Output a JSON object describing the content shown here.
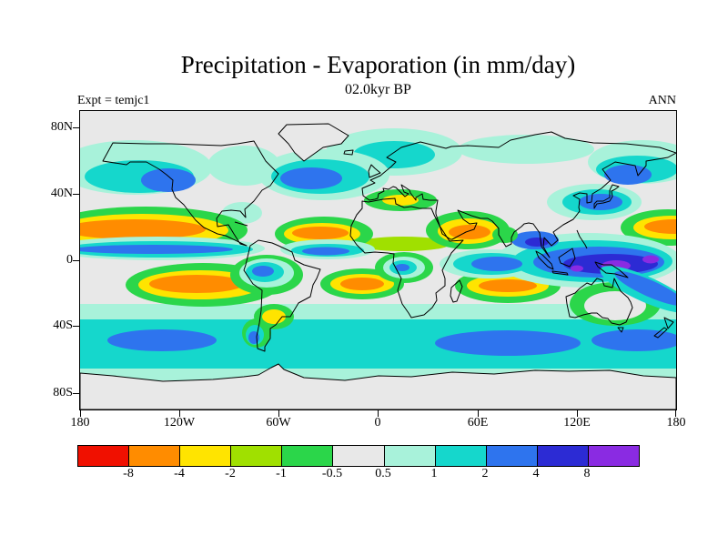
{
  "page": {
    "title": "Precipitation - Evaporation (in mm/day)",
    "subtitle": "02.0kyr BP",
    "experiment_label": "Expt = temjc1",
    "season_label": "ANN"
  },
  "axes": {
    "lat_ticks": [
      "80N",
      "40N",
      "0",
      "40S",
      "80S"
    ],
    "lon_ticks": [
      "180",
      "120W",
      "60W",
      "0",
      "60E",
      "120E",
      "180"
    ]
  },
  "colorbar": {
    "boundary_labels": [
      "-8",
      "-4",
      "-2",
      "-1",
      "-0.5",
      "0.5",
      "1",
      "2",
      "4",
      "8"
    ],
    "colors": [
      "#f01000",
      "#ff8c00",
      "#ffe400",
      "#a0e000",
      "#2bd64a",
      "#e8e8e8",
      "#a8f2da",
      "#15d7cc",
      "#2e74ee",
      "#2c2bd4",
      "#8a2be2"
    ]
  },
  "chart_data": {
    "type": "heatmap",
    "title": "Precipitation - Evaporation (in mm/day)",
    "subtitle": "02.0kyr BP",
    "experiment": "temjc1",
    "season": "ANN",
    "units": "mm/day",
    "projection": "global latitude-longitude world map, 180W-180E, 90S-90N",
    "lat_ticks": [
      "80N",
      "40N",
      "0",
      "40S",
      "80S"
    ],
    "lon_ticks": [
      "180",
      "120W",
      "60W",
      "0",
      "60E",
      "120E",
      "180"
    ],
    "contour_levels": [
      -8,
      -4,
      -2,
      -1,
      -0.5,
      0.5,
      1,
      2,
      4,
      8
    ],
    "palette": [
      "#f01000",
      "#ff8c00",
      "#ffe400",
      "#a0e000",
      "#2bd64a",
      "#e8e8e8",
      "#a8f2da",
      "#15d7cc",
      "#2e74ee",
      "#2c2bd4",
      "#8a2be2"
    ],
    "legend_position": "horizontal colorbar below map",
    "grid": false,
    "features": [
      "Strong wet band (P-E > 2, blue) along the ITCZ ~5-10N across the tropical Pacific and Atlantic",
      "Very wet western Pacific warm pool / Maritime Continent with cores exceeding 8 mm/day (purple) near Indonesia and New Guinea",
      "Moderately wet mid-latitude storm tracks (0.5-4 mm/day, cyan/blue) over the North Pacific, North Atlantic and the circumpolar Southern Ocean",
      "Dry subtropical belts (orange, -4 to -8 mm/day) ringed by yellow and green: central North Pacific, subtropical North Atlantic, Arabian Sea, southeastern Pacific, South Atlantic, southern Indian Ocean",
      "Near-zero P-E (gray, -0.5 to 0.5) over continental interiors, Sahara, central Asia, Greenland, the Arctic and Antarctica"
    ]
  }
}
